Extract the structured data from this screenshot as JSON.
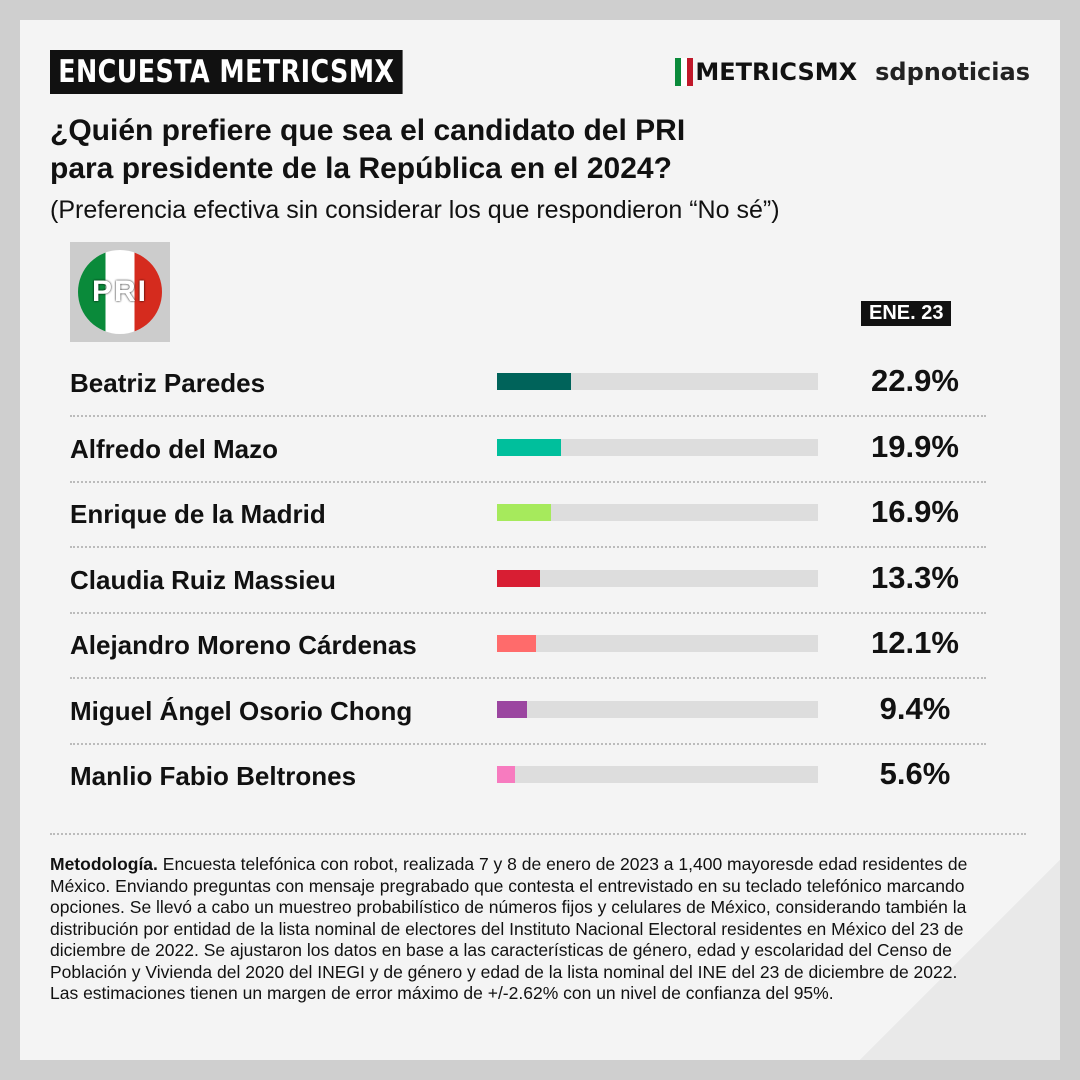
{
  "header": {
    "badge": "ENCUESTA METRICSMX",
    "logo_metrics": "METRICSMX",
    "logo_sdp": "sdpnoticias"
  },
  "title_line1": "¿Quién prefiere que sea el candidato del PRI",
  "title_line2": "para presidente de la República en el 2024?",
  "subtitle": "(Preferencia efectiva sin considerar los que respondieron “No sé”)",
  "party_logo": "PRI",
  "chart_data": {
    "type": "bar",
    "orientation": "horizontal",
    "period_label": "ENE. 23",
    "xlim": [
      0,
      100
    ],
    "categories": [
      "Beatriz Paredes",
      "Alfredo del Mazo",
      "Enrique de la Madrid",
      "Claudia Ruiz Massieu",
      "Alejandro Moreno Cárdenas",
      "Miguel Ángel Osorio Chong",
      "Manlio Fabio Beltrones"
    ],
    "values": [
      22.9,
      19.9,
      16.9,
      13.3,
      12.1,
      9.4,
      5.6
    ],
    "labels": [
      "22.9%",
      "19.9%",
      "16.9%",
      "13.3%",
      "12.1%",
      "9.4%",
      "5.6%"
    ],
    "colors": [
      "#00635a",
      "#00bf9c",
      "#a6ea5c",
      "#d81e33",
      "#ff6b6b",
      "#9b46a0",
      "#f77bbf"
    ],
    "track_color": "#dddddd"
  },
  "methodology": {
    "label": "Metodología.",
    "text": " Encuesta telefónica con robot, realizada 7 y 8 de enero de 2023 a 1,400 mayoresde edad residentes de México. Enviando preguntas con mensaje pregrabado que contesta el entrevistado en su teclado telefónico marcando opciones. Se llevó a cabo un muestreo probabilístico de números fijos y celulares de México, considerando también la distribución por entidad de la lista nominal de electores del Instituto Nacional Electoral residentes en México del 23 de diciembre de 2022. Se ajustaron los datos en base a las características de género, edad y escolaridad del Censo de Población y Vivienda del 2020 del INEGI y de género y edad de la lista nominal del INE del 23 de diciembre de 2022.",
    "margin": "Las estimaciones tienen un margen de error máximo de +/-2.62% con un nivel de confianza del 95%."
  }
}
